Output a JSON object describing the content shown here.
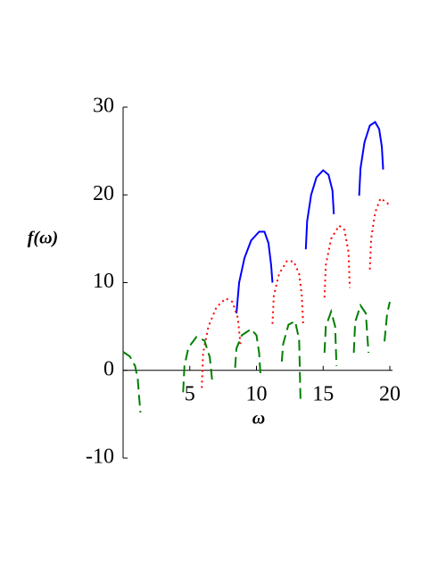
{
  "chart_data": {
    "type": "line",
    "xlabel": "ω",
    "ylabel": "f(ω)",
    "xlim": [
      0,
      20
    ],
    "ylim": [
      -10,
      30
    ],
    "xticks": [
      5,
      10,
      15,
      20
    ],
    "yticks": [
      -10,
      0,
      10,
      20,
      30
    ],
    "grid": false,
    "series": [
      {
        "color": "#0000ff",
        "dash": "solid",
        "x": [
          8.5,
          8.7,
          9.1,
          9.6,
          10.2,
          10.6,
          10.9,
          11.1,
          11.2,
          null,
          13.7,
          13.8,
          14.1,
          14.5,
          15.0,
          15.4,
          15.7,
          15.8,
          null,
          17.7,
          17.8,
          18.1,
          18.5,
          18.9,
          19.2,
          19.4,
          19.5
        ],
        "values": [
          6.5,
          10,
          12.8,
          14.8,
          15.8,
          15.8,
          14.5,
          12,
          10,
          null,
          13.8,
          17,
          20,
          22,
          22.8,
          22.3,
          20.5,
          17.8,
          null,
          19.9,
          23,
          26,
          27.9,
          28.3,
          27.5,
          25.5,
          22.9
        ]
      },
      {
        "color": "#ff0000",
        "dash": "dotted",
        "x": [
          5.9,
          6.0,
          6.4,
          7.0,
          7.7,
          8.2,
          8.6,
          8.8,
          null,
          11.2,
          11.3,
          11.7,
          12.3,
          12.8,
          13.2,
          13.4,
          13.5,
          null,
          15.1,
          15.2,
          15.6,
          16.2,
          16.6,
          16.9,
          17.0,
          null,
          18.5,
          18.6,
          18.9,
          19.3,
          19.7,
          20
        ],
        "values": [
          -2,
          2,
          5,
          7.2,
          8.2,
          7.8,
          6,
          3,
          null,
          5.3,
          8.5,
          11,
          12.5,
          12.4,
          11,
          8.5,
          5.3,
          null,
          8.3,
          12,
          15,
          16.5,
          16,
          13.5,
          9.4,
          null,
          11.5,
          15,
          18,
          19.6,
          19.2,
          18.8
        ]
      },
      {
        "color": "#008000",
        "dash": "dashed",
        "x": [
          0,
          0.5,
          0.9,
          1.1,
          1.2,
          1.3,
          null,
          4.5,
          4.6,
          4.9,
          5.5,
          6.1,
          6.5,
          6.7,
          null,
          8.4,
          8.5,
          8.9,
          9.6,
          10.0,
          10.2,
          10.3,
          null,
          11.9,
          12.0,
          12.4,
          12.9,
          13.2,
          13.3,
          null,
          15.1,
          15.2,
          15.6,
          15.9,
          16.0,
          null,
          17.3,
          17.4,
          17.8,
          18.2,
          18.4,
          null,
          19.6,
          19.8,
          20
        ],
        "values": [
          2.1,
          1.6,
          0.5,
          -1,
          -3,
          -4.8,
          null,
          -2.5,
          0.5,
          2.6,
          3.8,
          3.4,
          1.5,
          -1.5,
          null,
          0.3,
          2.5,
          4,
          4.7,
          4,
          2,
          -0.5,
          null,
          1,
          3,
          5.2,
          5.6,
          3.5,
          -3.4,
          null,
          2,
          5,
          6.7,
          5,
          0.5,
          null,
          2,
          5.5,
          7.4,
          6.5,
          2,
          null,
          3.3,
          6.5,
          7.8
        ]
      }
    ]
  }
}
